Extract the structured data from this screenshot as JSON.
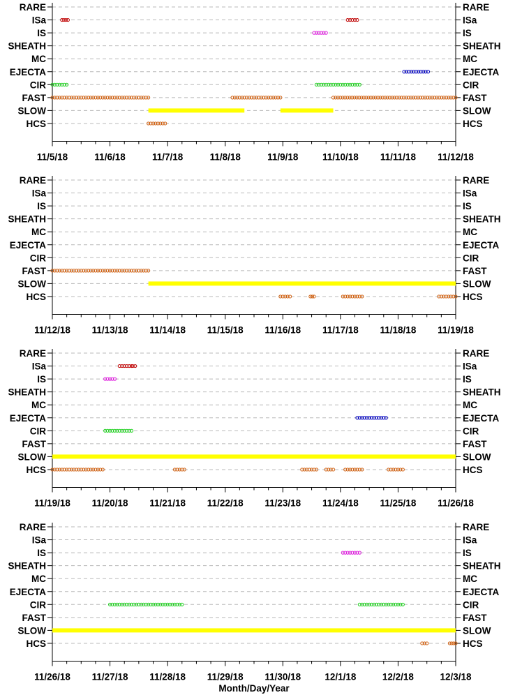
{
  "chart_data": {
    "type": "scatter",
    "xlabel": "Month/Day/Year",
    "categories": [
      "RARE",
      "ISa",
      "IS",
      "SHEATH",
      "MC",
      "EJECTA",
      "CIR",
      "FAST",
      "SLOW",
      "HCS"
    ],
    "colors": {
      "ISa": "#c00000",
      "IS": "#e020e0",
      "EJECTA": "#0000c0",
      "CIR": "#20d020",
      "FAST": "#d06010",
      "SLOW": "#ffff00",
      "HCS": "#d06010"
    },
    "grid": "dashed horizontal",
    "panels": [
      {
        "xlim": [
          "2018-11-05",
          "2018-11-12"
        ],
        "tick_labels": [
          "11/5/18",
          "11/6/18",
          "11/7/18",
          "11/8/18",
          "11/9/18",
          "11/10/18",
          "11/11/18",
          "11/12/18"
        ],
        "intervals": [
          {
            "category": "ISa",
            "start": "2018-11-05 04:00",
            "end": "2018-11-05 06:30"
          },
          {
            "category": "ISa",
            "start": "2018-11-10 03:00",
            "end": "2018-11-10 07:00"
          },
          {
            "category": "IS",
            "start": "2018-11-09 13:00",
            "end": "2018-11-09 18:00"
          },
          {
            "category": "EJECTA",
            "start": "2018-11-11 02:30",
            "end": "2018-11-11 12:30"
          },
          {
            "category": "CIR",
            "start": "2018-11-05 00:00",
            "end": "2018-11-05 06:00"
          },
          {
            "category": "CIR",
            "start": "2018-11-09 14:00",
            "end": "2018-11-10 08:00"
          },
          {
            "category": "FAST",
            "start": "2018-11-05 00:00",
            "end": "2018-11-06 16:00"
          },
          {
            "category": "FAST",
            "start": "2018-11-08 03:00",
            "end": "2018-11-08 23:00"
          },
          {
            "category": "FAST",
            "start": "2018-11-09 21:00",
            "end": "2018-11-12 00:00"
          },
          {
            "category": "SLOW",
            "start": "2018-11-06 16:00",
            "end": "2018-11-08 08:00"
          },
          {
            "category": "SLOW",
            "start": "2018-11-08 23:00",
            "end": "2018-11-09 21:00"
          },
          {
            "category": "HCS",
            "start": "2018-11-06 16:00",
            "end": "2018-11-06 23:00"
          }
        ]
      },
      {
        "xlim": [
          "2018-11-12",
          "2018-11-19"
        ],
        "tick_labels": [
          "11/12/18",
          "11/13/18",
          "11/14/18",
          "11/15/18",
          "11/16/18",
          "11/17/18",
          "11/18/18",
          "11/19/18"
        ],
        "intervals": [
          {
            "category": "FAST",
            "start": "2018-11-12 00:00",
            "end": "2018-11-13 16:00"
          },
          {
            "category": "SLOW",
            "start": "2018-11-13 16:00",
            "end": "2018-11-19 00:00"
          },
          {
            "category": "HCS",
            "start": "2018-11-15 23:00",
            "end": "2018-11-16 03:00"
          },
          {
            "category": "HCS",
            "start": "2018-11-16 11:30",
            "end": "2018-11-16 13:00"
          },
          {
            "category": "HCS",
            "start": "2018-11-17 01:00",
            "end": "2018-11-17 09:00"
          },
          {
            "category": "HCS",
            "start": "2018-11-18 17:00",
            "end": "2018-11-19 00:00"
          }
        ]
      },
      {
        "xlim": [
          "2018-11-19",
          "2018-11-26"
        ],
        "tick_labels": [
          "11/19/18",
          "11/20/18",
          "11/21/18",
          "11/22/18",
          "11/23/18",
          "11/24/18",
          "11/25/18",
          "11/26/18"
        ],
        "intervals": [
          {
            "category": "ISa",
            "start": "2018-11-20 04:00",
            "end": "2018-11-20 09:00"
          },
          {
            "category": "ISa",
            "start": "2018-11-20 09:30",
            "end": "2018-11-20 10:30"
          },
          {
            "category": "IS",
            "start": "2018-11-19 22:00",
            "end": "2018-11-20 02:00"
          },
          {
            "category": "EJECTA",
            "start": "2018-11-24 07:00",
            "end": "2018-11-24 19:00"
          },
          {
            "category": "CIR",
            "start": "2018-11-19 22:00",
            "end": "2018-11-20 09:00"
          },
          {
            "category": "SLOW",
            "start": "2018-11-19 00:00",
            "end": "2018-11-26 00:00"
          },
          {
            "category": "HCS",
            "start": "2018-11-19 00:00",
            "end": "2018-11-19 21:00"
          },
          {
            "category": "HCS",
            "start": "2018-11-21 03:00",
            "end": "2018-11-21 07:00"
          },
          {
            "category": "HCS",
            "start": "2018-11-23 08:00",
            "end": "2018-11-23 14:00"
          },
          {
            "category": "HCS",
            "start": "2018-11-23 18:00",
            "end": "2018-11-23 21:00"
          },
          {
            "category": "HCS",
            "start": "2018-11-24 02:00",
            "end": "2018-11-24 09:00"
          },
          {
            "category": "HCS",
            "start": "2018-11-24 20:00",
            "end": "2018-11-25 02:00"
          }
        ]
      },
      {
        "xlim": [
          "2018-11-26",
          "2018-12-03"
        ],
        "tick_labels": [
          "11/26/18",
          "11/27/18",
          "11/28/18",
          "11/29/18",
          "11/30/18",
          "12/1/18",
          "12/2/18",
          "12/3/18"
        ],
        "intervals": [
          {
            "category": "IS",
            "start": "2018-12-01 01:00",
            "end": "2018-12-01 08:00"
          },
          {
            "category": "CIR",
            "start": "2018-11-27 00:00",
            "end": "2018-11-28 06:00"
          },
          {
            "category": "CIR",
            "start": "2018-12-01 08:00",
            "end": "2018-12-02 02:00"
          },
          {
            "category": "SLOW",
            "start": "2018-11-26 00:00",
            "end": "2018-12-03 00:00"
          },
          {
            "category": "HCS",
            "start": "2018-12-02 10:00",
            "end": "2018-12-02 12:00"
          },
          {
            "category": "HCS",
            "start": "2018-12-02 21:30",
            "end": "2018-12-03 00:00"
          }
        ]
      }
    ]
  }
}
